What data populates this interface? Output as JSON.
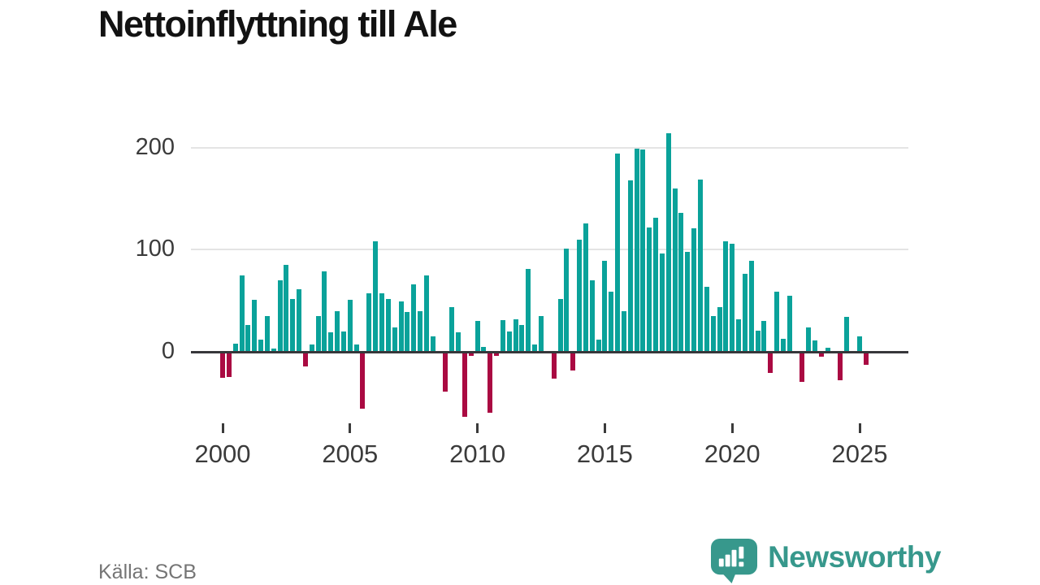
{
  "title": "Nettoinflyttning till Ale",
  "source": "Källa: SCB",
  "branding": {
    "name": "Newsworthy"
  },
  "colors": {
    "positive": "#0aa29a",
    "negative": "#aa0a42",
    "axis": "#37373a",
    "grid": "#e4e4e4",
    "labels": "#3b3b3b",
    "brand": "#37988c"
  },
  "chart_data": {
    "type": "bar",
    "title": "Nettoinflyttning till Ale",
    "xlabel": "",
    "ylabel": "",
    "yticks": [
      0,
      100,
      200
    ],
    "ylim": [
      -75,
      225
    ],
    "grid": "horizontal",
    "x_tick_labels": [
      "2000",
      "2005",
      "2010",
      "2015",
      "2020",
      "2025"
    ],
    "x_tick_indices": [
      0,
      20,
      40,
      60,
      80,
      100
    ],
    "x": [
      "2000Q1",
      "2000Q2",
      "2000Q3",
      "2000Q4",
      "2001Q1",
      "2001Q2",
      "2001Q3",
      "2001Q4",
      "2002Q1",
      "2002Q2",
      "2002Q3",
      "2002Q4",
      "2003Q1",
      "2003Q2",
      "2003Q3",
      "2003Q4",
      "2004Q1",
      "2004Q2",
      "2004Q3",
      "2004Q4",
      "2005Q1",
      "2005Q2",
      "2005Q3",
      "2005Q4",
      "2006Q1",
      "2006Q2",
      "2006Q3",
      "2006Q4",
      "2007Q1",
      "2007Q2",
      "2007Q3",
      "2007Q4",
      "2008Q1",
      "2008Q2",
      "2008Q3",
      "2008Q4",
      "2009Q1",
      "2009Q2",
      "2009Q3",
      "2009Q4",
      "2010Q1",
      "2010Q2",
      "2010Q3",
      "2010Q4",
      "2011Q1",
      "2011Q2",
      "2011Q3",
      "2011Q4",
      "2012Q1",
      "2012Q2",
      "2012Q3",
      "2012Q4",
      "2013Q1",
      "2013Q2",
      "2013Q3",
      "2013Q4",
      "2014Q1",
      "2014Q2",
      "2014Q3",
      "2014Q4",
      "2015Q1",
      "2015Q2",
      "2015Q3",
      "2015Q4",
      "2016Q1",
      "2016Q2",
      "2016Q3",
      "2016Q4",
      "2017Q1",
      "2017Q2",
      "2017Q3",
      "2017Q4",
      "2018Q1",
      "2018Q2",
      "2018Q3",
      "2018Q4",
      "2019Q1",
      "2019Q2",
      "2019Q3",
      "2019Q4",
      "2020Q1",
      "2020Q2",
      "2020Q3",
      "2020Q4",
      "2021Q1",
      "2021Q2",
      "2021Q3",
      "2021Q4",
      "2022Q1",
      "2022Q2",
      "2022Q3",
      "2022Q4",
      "2023Q1",
      "2023Q2",
      "2023Q3",
      "2023Q4",
      "2024Q1",
      "2024Q2",
      "2024Q3",
      "2024Q4",
      "2025Q1",
      "2025Q2"
    ],
    "values": [
      -24,
      -23,
      8,
      75,
      26,
      51,
      12,
      35,
      3,
      70,
      85,
      52,
      61,
      -13,
      7,
      35,
      79,
      19,
      40,
      20,
      51,
      7,
      -54,
      57,
      108,
      57,
      52,
      24,
      49,
      39,
      66,
      40,
      75,
      15,
      0,
      -37,
      44,
      19,
      -62,
      -2,
      30,
      5,
      -58,
      -2,
      31,
      20,
      32,
      26,
      81,
      7,
      35,
      1,
      -25,
      52,
      101,
      -17,
      110,
      126,
      70,
      12,
      89,
      59,
      194,
      40,
      168,
      199,
      198,
      122,
      131,
      96,
      214,
      160,
      136,
      98,
      121,
      169,
      64,
      35,
      44,
      108,
      106,
      32,
      76,
      89,
      21,
      30,
      -19,
      59,
      13,
      55,
      1,
      -28,
      24,
      11,
      -3,
      4,
      0,
      -26,
      34,
      0,
      15,
      -11
    ]
  }
}
